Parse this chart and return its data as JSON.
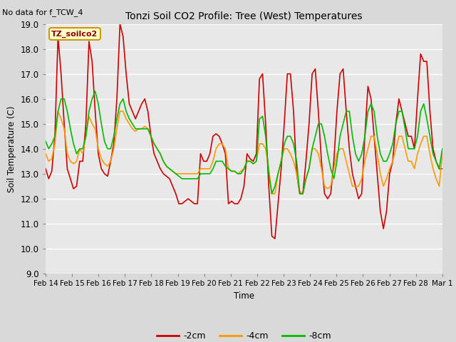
{
  "title": "Tonzi Soil CO2 Profile: Tree (West) Temperatures",
  "subtitle": "No data for f_TCW_4",
  "ylabel": "Soil Temperature (C)",
  "xlabel": "Time",
  "legend_label": "TZ_soilco2",
  "ylim": [
    9.0,
    19.0
  ],
  "yticks": [
    9.0,
    10.0,
    11.0,
    12.0,
    13.0,
    14.0,
    15.0,
    16.0,
    17.0,
    18.0,
    19.0
  ],
  "fig_bg_color": "#d9d9d9",
  "plot_bg_color": "#e8e8e8",
  "line_colors": {
    "m2cm": "#cc0000",
    "m4cm": "#ff9900",
    "m8cm": "#00bb00"
  },
  "line_width": 1.2,
  "series_labels": [
    "-2cm",
    "-4cm",
    "-8cm"
  ],
  "x_ticklabels": [
    "Feb 14",
    "Feb 15",
    "Feb 16",
    "Feb 17",
    "Feb 18",
    "Feb 19",
    "Feb 20",
    "Feb 21",
    "Feb 22",
    "Feb 23",
    "Feb 24",
    "Feb 25",
    "Feb 26",
    "Feb 27",
    "Feb 28",
    "Mar 1"
  ],
  "m2cm": [
    13.2,
    12.8,
    13.1,
    14.5,
    18.5,
    17.0,
    15.0,
    13.2,
    12.8,
    12.4,
    12.5,
    13.5,
    13.5,
    15.0,
    18.3,
    17.5,
    15.5,
    13.8,
    13.2,
    13.0,
    12.9,
    13.5,
    14.2,
    16.0,
    19.0,
    18.5,
    17.0,
    15.8,
    15.5,
    15.2,
    15.5,
    15.8,
    16.0,
    15.5,
    14.5,
    13.8,
    13.5,
    13.2,
    13.0,
    12.9,
    12.8,
    12.5,
    12.2,
    11.8,
    11.8,
    11.9,
    12.0,
    11.9,
    11.8,
    11.8,
    13.8,
    13.5,
    13.5,
    13.8,
    14.5,
    14.6,
    14.5,
    14.2,
    13.8,
    11.8,
    11.9,
    11.8,
    11.8,
    12.0,
    12.5,
    13.8,
    13.6,
    13.5,
    13.8,
    16.8,
    17.0,
    15.0,
    12.5,
    10.5,
    10.4,
    11.8,
    13.2,
    15.0,
    17.0,
    17.0,
    15.5,
    13.0,
    12.2,
    12.2,
    13.5,
    15.0,
    17.0,
    17.2,
    15.5,
    13.5,
    12.2,
    12.0,
    12.2,
    13.5,
    15.5,
    17.0,
    17.2,
    15.5,
    14.0,
    13.0,
    12.5,
    12.0,
    12.2,
    14.5,
    16.5,
    16.0,
    14.5,
    13.0,
    11.5,
    10.8,
    11.5,
    13.0,
    13.5,
    15.0,
    16.0,
    15.5,
    15.0,
    14.5,
    14.5,
    14.0,
    16.0,
    17.8,
    17.5,
    17.5,
    15.5,
    14.0,
    13.5,
    13.2,
    13.2
  ],
  "m4cm": [
    13.8,
    13.5,
    13.6,
    14.2,
    15.5,
    15.2,
    14.8,
    13.8,
    13.5,
    13.4,
    13.5,
    14.0,
    13.8,
    14.5,
    15.3,
    15.0,
    14.8,
    14.0,
    13.6,
    13.4,
    13.3,
    13.5,
    14.0,
    14.8,
    15.5,
    15.5,
    15.2,
    15.0,
    14.8,
    14.7,
    14.8,
    14.8,
    14.9,
    14.8,
    14.5,
    14.2,
    14.0,
    13.8,
    13.5,
    13.3,
    13.2,
    13.1,
    13.0,
    13.0,
    13.0,
    13.0,
    13.0,
    13.0,
    13.0,
    13.0,
    13.2,
    13.2,
    13.2,
    13.2,
    13.5,
    14.0,
    14.2,
    14.2,
    14.0,
    13.2,
    13.1,
    13.1,
    13.0,
    13.1,
    13.2,
    13.5,
    13.5,
    13.4,
    13.5,
    14.2,
    14.2,
    14.0,
    13.2,
    12.2,
    12.2,
    13.0,
    13.5,
    14.0,
    14.0,
    13.8,
    13.5,
    13.0,
    12.3,
    12.2,
    12.8,
    13.2,
    14.0,
    14.0,
    13.8,
    13.2,
    12.5,
    12.4,
    12.5,
    13.2,
    13.8,
    14.0,
    14.0,
    13.5,
    13.0,
    12.5,
    12.5,
    12.5,
    12.8,
    13.5,
    14.0,
    14.5,
    14.5,
    13.8,
    13.0,
    12.5,
    12.8,
    13.2,
    13.5,
    14.0,
    14.5,
    14.5,
    14.0,
    13.5,
    13.5,
    13.2,
    13.8,
    14.2,
    14.5,
    14.5,
    13.8,
    13.2,
    12.8,
    12.5,
    13.8
  ],
  "m8cm": [
    14.3,
    14.0,
    14.2,
    14.5,
    15.5,
    16.0,
    16.0,
    15.5,
    14.8,
    14.2,
    13.8,
    14.0,
    14.0,
    14.5,
    15.5,
    16.0,
    16.3,
    15.8,
    15.0,
    14.3,
    14.0,
    14.0,
    14.5,
    15.2,
    15.8,
    16.0,
    15.5,
    15.2,
    15.0,
    14.8,
    14.8,
    14.8,
    14.8,
    14.8,
    14.5,
    14.2,
    14.0,
    13.8,
    13.5,
    13.3,
    13.2,
    13.1,
    13.0,
    12.9,
    12.8,
    12.8,
    12.8,
    12.8,
    12.8,
    12.8,
    13.0,
    13.0,
    13.0,
    13.0,
    13.2,
    13.5,
    13.5,
    13.5,
    13.3,
    13.2,
    13.1,
    13.1,
    13.0,
    13.0,
    13.2,
    13.5,
    13.5,
    13.4,
    13.5,
    15.2,
    15.3,
    14.5,
    13.0,
    12.2,
    12.5,
    13.0,
    13.5,
    14.2,
    14.5,
    14.5,
    14.2,
    13.5,
    12.2,
    12.2,
    12.8,
    13.2,
    14.0,
    14.5,
    15.0,
    15.0,
    14.5,
    13.8,
    13.2,
    12.8,
    13.5,
    14.5,
    15.0,
    15.5,
    15.5,
    14.5,
    13.8,
    13.5,
    13.8,
    14.5,
    15.5,
    15.8,
    15.5,
    14.5,
    13.8,
    13.5,
    13.5,
    13.8,
    14.2,
    15.0,
    15.5,
    15.5,
    14.8,
    14.0,
    14.0,
    14.0,
    14.5,
    15.5,
    15.8,
    15.2,
    14.5,
    13.8,
    13.5,
    13.2,
    14.0
  ]
}
